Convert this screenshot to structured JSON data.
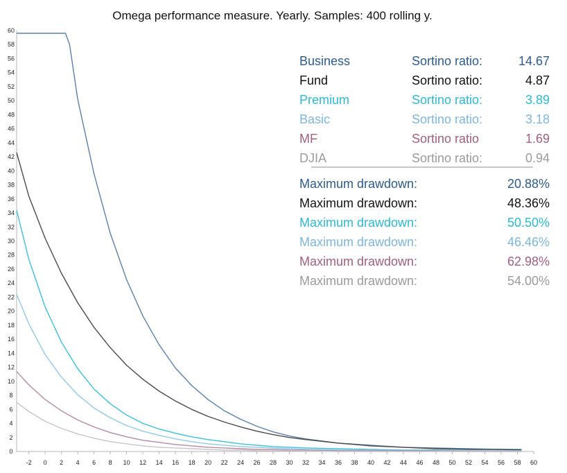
{
  "chart_data": {
    "type": "line",
    "title": "Omega performance measure. Yearly. Samples: 400 rolling y.",
    "xlabel": "",
    "ylabel": "",
    "xlim": [
      -3.5,
      60
    ],
    "ylim": [
      0,
      60
    ],
    "x_ticks": [
      -2,
      0,
      2,
      4,
      6,
      8,
      10,
      12,
      14,
      16,
      18,
      20,
      22,
      24,
      26,
      28,
      30,
      32,
      34,
      36,
      38,
      40,
      42,
      44,
      46,
      48,
      50,
      52,
      54,
      56,
      58,
      60
    ],
    "x_tick_labels": [
      "-2",
      "0",
      "2",
      "4",
      "6",
      "8",
      "10",
      "12",
      "14",
      "16",
      "18",
      "20",
      "22",
      "24",
      "26",
      "28",
      "30",
      "32",
      "34",
      "36",
      "38",
      "40",
      "42",
      "44",
      "46",
      "48",
      "50",
      "52",
      "54",
      "56",
      "58",
      "60"
    ],
    "y_ticks": [
      0,
      2,
      4,
      6,
      8,
      10,
      12,
      14,
      16,
      18,
      20,
      22,
      24,
      26,
      28,
      30,
      32,
      34,
      36,
      38,
      40,
      42,
      44,
      46,
      48,
      50,
      52,
      54,
      56,
      58,
      60
    ],
    "series": [
      {
        "name": "Business",
        "color": "#5b7fa8",
        "x": [
          -3.5,
          -2,
          0,
          2,
          2.5,
          3,
          4,
          6,
          8,
          10,
          12,
          14,
          16,
          18,
          20,
          22,
          24,
          26,
          28,
          30,
          32,
          36,
          40,
          44,
          48,
          52,
          56,
          58.5
        ],
        "y": [
          59.6,
          59.6,
          59.6,
          59.6,
          59.6,
          58,
          50.2,
          39.6,
          31.1,
          24.5,
          19.3,
          15.2,
          11.9,
          9.4,
          7.4,
          5.8,
          4.6,
          3.6,
          2.8,
          2.2,
          1.8,
          1.2,
          0.9,
          0.6,
          0.5,
          0.4,
          0.3,
          0.3
        ]
      },
      {
        "name": "Fund",
        "color": "#4a4a4a",
        "x": [
          -3.5,
          -2,
          0,
          2,
          4,
          6,
          8,
          10,
          12,
          14,
          16,
          18,
          20,
          22,
          24,
          26,
          28,
          30,
          32,
          36,
          40,
          44,
          48,
          52,
          56,
          58.5
        ],
        "y": [
          42.6,
          36.4,
          30.4,
          25.4,
          21.2,
          17.7,
          14.8,
          12.3,
          10.3,
          8.6,
          7.2,
          6.0,
          5.0,
          4.2,
          3.5,
          2.9,
          2.4,
          2.0,
          1.7,
          1.2,
          0.8,
          0.6,
          0.4,
          0.3,
          0.3,
          0.2
        ]
      },
      {
        "name": "Premium",
        "color": "#3cc0d9",
        "x": [
          -3.5,
          -2,
          0,
          2,
          4,
          6,
          8,
          10,
          12,
          14,
          16,
          18,
          20,
          22,
          24,
          26,
          28,
          30,
          32,
          36,
          40,
          44,
          48,
          52,
          56,
          58.5
        ],
        "y": [
          34.4,
          27.4,
          20.6,
          15.6,
          11.8,
          8.9,
          6.8,
          5.2,
          4.0,
          3.2,
          2.6,
          2.1,
          1.7,
          1.4,
          1.1,
          0.9,
          0.7,
          0.6,
          0.5,
          0.4,
          0.3,
          0.2,
          0.2,
          0.1,
          0.1,
          0.1
        ]
      },
      {
        "name": "Basic",
        "color": "#92c8e8",
        "x": [
          -3.5,
          -2,
          0,
          2,
          4,
          6,
          8,
          10,
          12,
          14,
          16,
          18,
          20,
          22,
          24,
          26,
          28,
          30,
          32,
          36,
          40,
          44,
          48,
          52,
          56,
          58.5
        ],
        "y": [
          22.4,
          18.2,
          13.8,
          10.6,
          8.1,
          6.2,
          4.8,
          3.7,
          2.9,
          2.3,
          1.8,
          1.4,
          1.1,
          0.9,
          0.7,
          0.6,
          0.5,
          0.4,
          0.3,
          0.2,
          0.2,
          0.1,
          0.1,
          0.1,
          0.1,
          0.1
        ]
      },
      {
        "name": "MF",
        "color": "#b38aa0",
        "x": [
          -3.5,
          -2,
          0,
          2,
          4,
          6,
          8,
          10,
          12,
          14,
          16,
          18,
          20,
          22,
          24,
          26,
          28,
          30,
          32,
          36,
          40,
          44,
          48,
          52,
          56,
          58.5
        ],
        "y": [
          11.4,
          9.5,
          7.4,
          5.8,
          4.5,
          3.5,
          2.7,
          2.1,
          1.6,
          1.3,
          1.0,
          0.8,
          0.6,
          0.5,
          0.4,
          0.3,
          0.3,
          0.2,
          0.2,
          0.1,
          0.1,
          0.1,
          0.1,
          0.0,
          0.0,
          0.0
        ]
      },
      {
        "name": "DJIA",
        "color": "#c9c3cb",
        "x": [
          -3.5,
          -2,
          0,
          2,
          4,
          6,
          8,
          10,
          12,
          14,
          16,
          18,
          20,
          22,
          24,
          26,
          28,
          30,
          32,
          36,
          40,
          44,
          48,
          52,
          56,
          58.5
        ],
        "y": [
          7.0,
          5.7,
          4.3,
          3.3,
          2.5,
          1.9,
          1.4,
          1.1,
          0.8,
          0.6,
          0.5,
          0.4,
          0.3,
          0.2,
          0.2,
          0.1,
          0.1,
          0.1,
          0.1,
          0.0,
          0.0,
          0.0,
          0.0,
          0.0,
          0.0,
          0.0
        ]
      }
    ],
    "legend": {
      "placement": "top-right",
      "sortino": [
        {
          "name": "Business",
          "label": "Sortino ratio:",
          "value": "14.67",
          "color": "#2e5b8a"
        },
        {
          "name": "Fund",
          "label": "Sortino ratio:",
          "value": "4.87",
          "color": "#111111"
        },
        {
          "name": "Premium",
          "label": "Sortino ratio:",
          "value": "3.89",
          "color": "#2fb8d4"
        },
        {
          "name": "Basic",
          "label": "Sortino ratio:",
          "value": "3.18",
          "color": "#7fb6dc"
        },
        {
          "name": "MF",
          "label": "Sortino ratio",
          "value": "1.69",
          "color": "#a0607f"
        },
        {
          "name": "DJIA",
          "label": "Sortino ratio:",
          "value": "0.94",
          "color": "#9b9b9b"
        }
      ],
      "drawdown": [
        {
          "label": "Maximum drawdown:",
          "value": "20.88%",
          "color": "#2e5b8a"
        },
        {
          "label": "Maximum drawdown:",
          "value": "48.36%",
          "color": "#111111"
        },
        {
          "label": "Maximum drawdown:",
          "value": "50.50%",
          "color": "#2fb8d4"
        },
        {
          "label": "Maximum drawdown:",
          "value": "46.46%",
          "color": "#7fb6dc"
        },
        {
          "label": "Maximum drawdown:",
          "value": "62.98%",
          "color": "#a0607f"
        },
        {
          "label": "Maximum drawdown:",
          "value": "54.00%",
          "color": "#9b9b9b"
        }
      ]
    }
  }
}
